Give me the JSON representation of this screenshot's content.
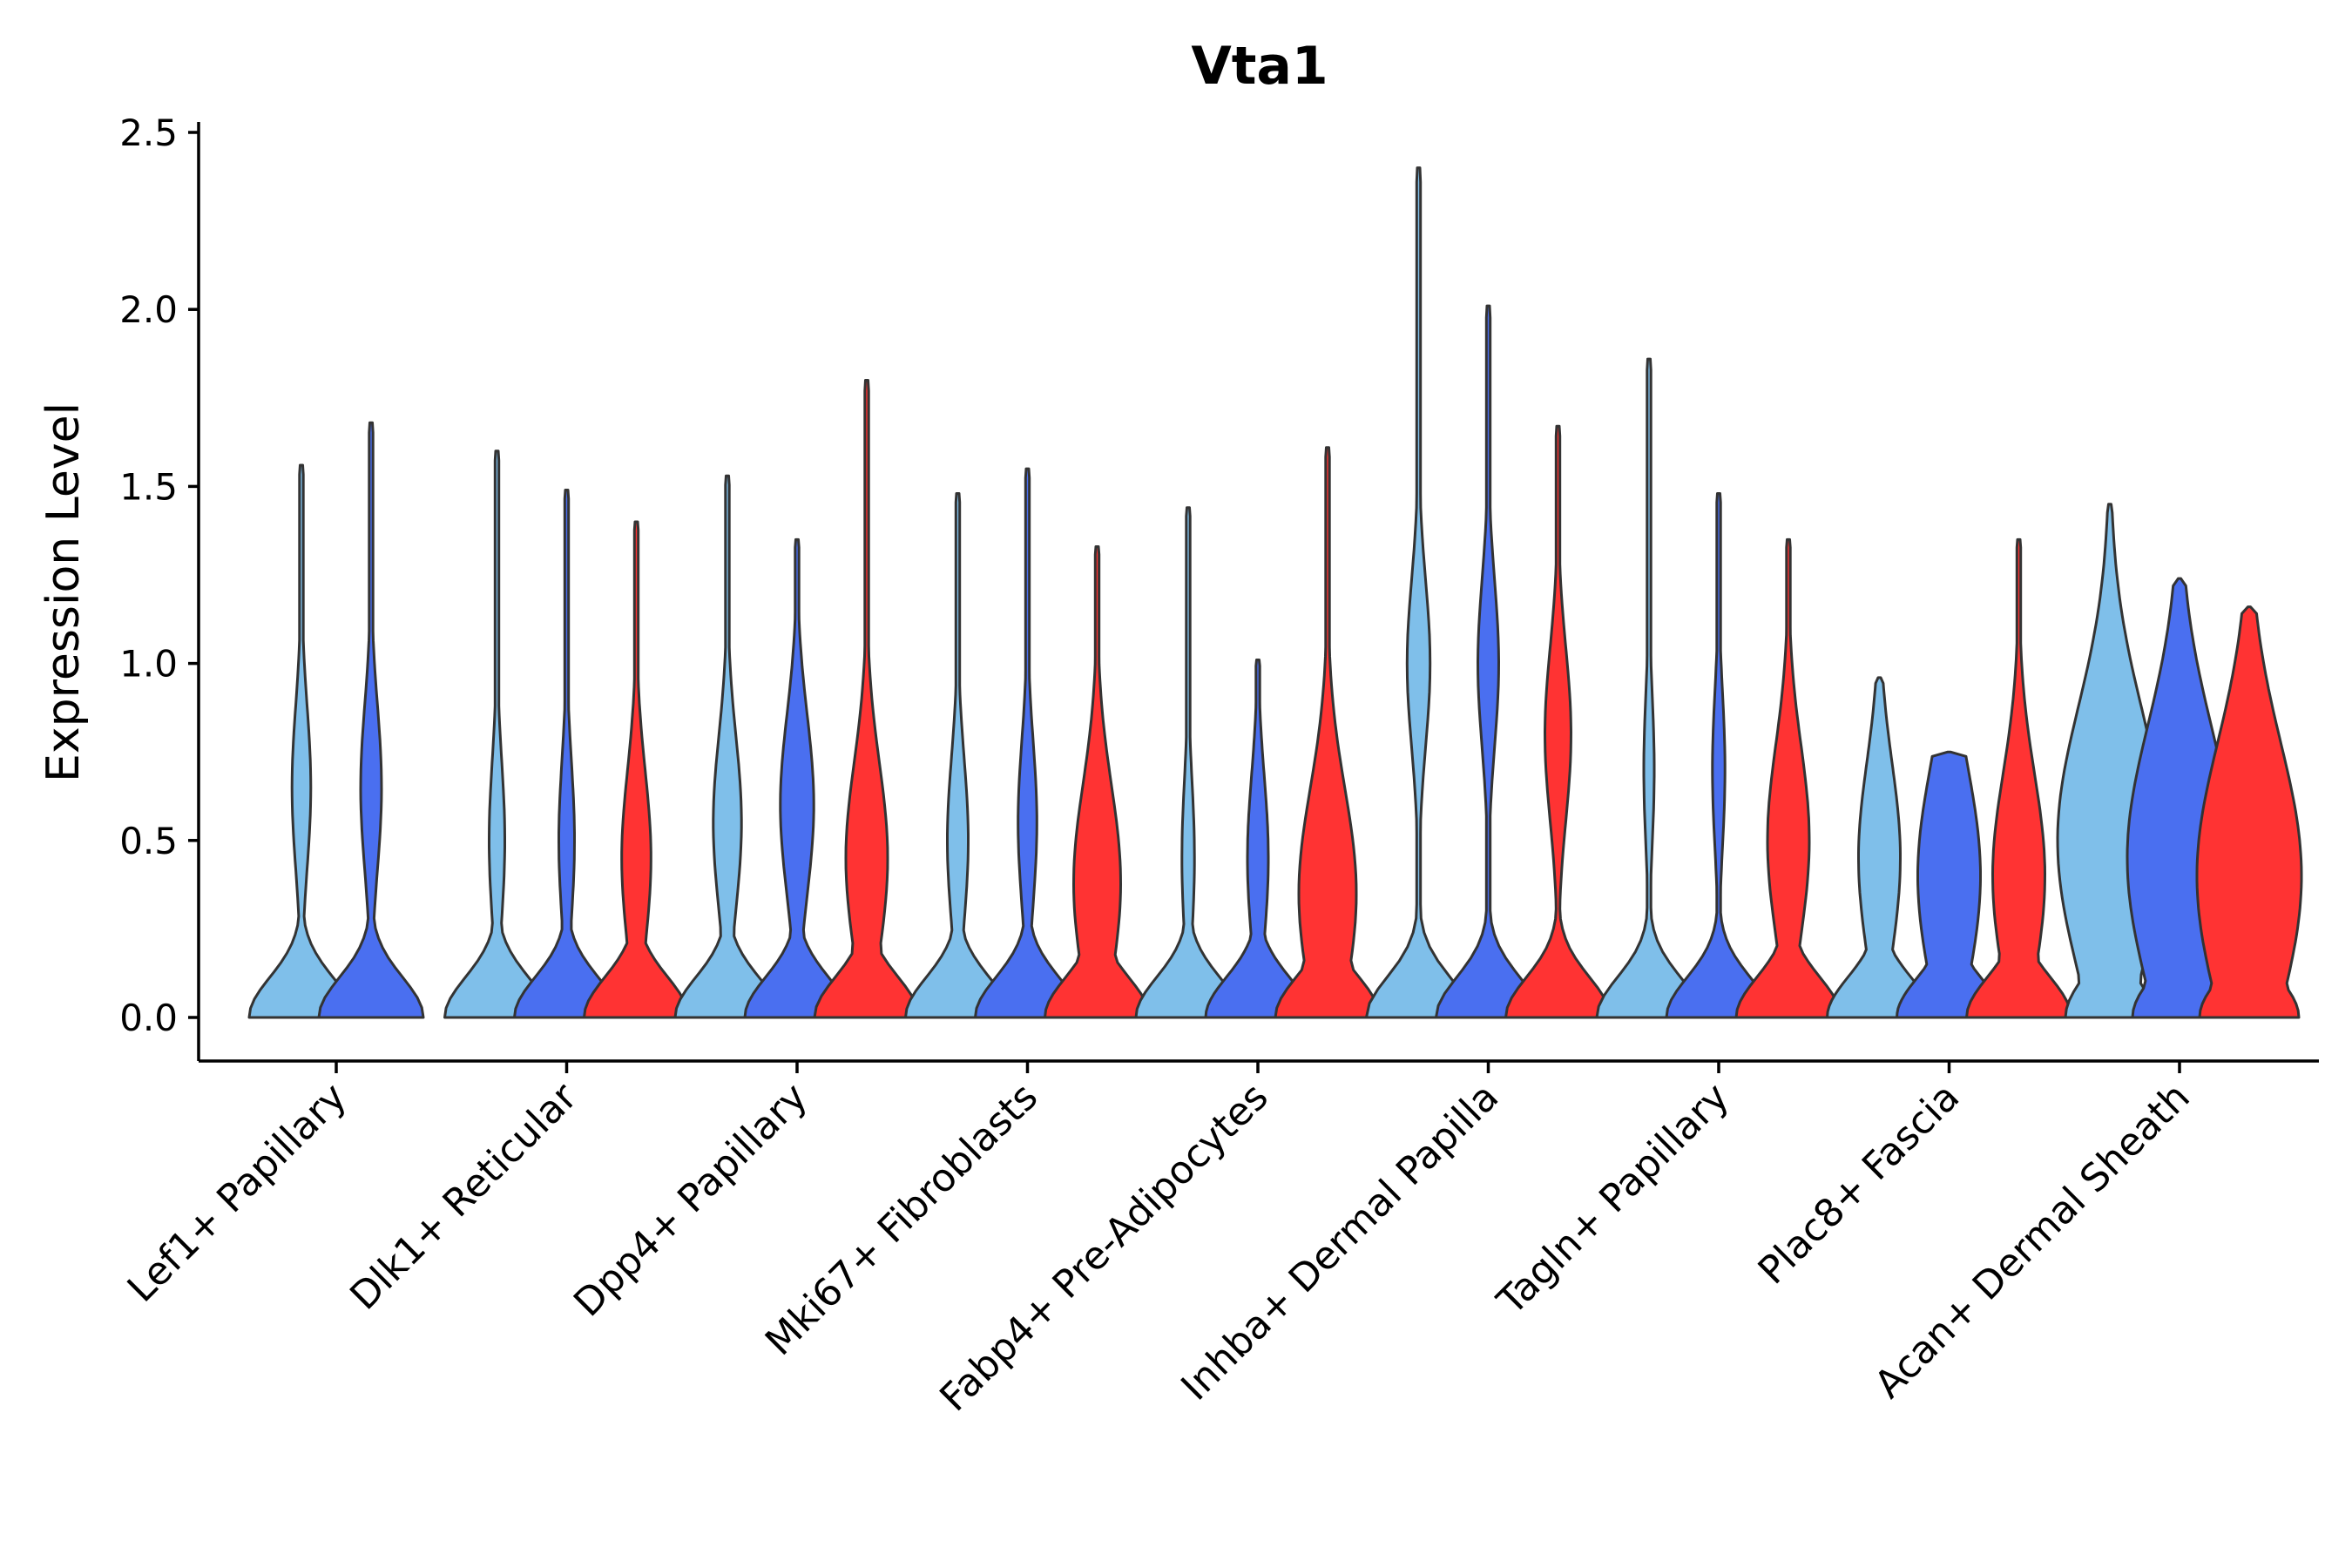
{
  "chart_data": {
    "type": "violin",
    "title": "Vta1",
    "xlabel": "",
    "ylabel": "Expression Level",
    "ylim": [
      -0.12,
      2.52
    ],
    "yticks": [
      "0.0",
      "0.5",
      "1.0",
      "1.5",
      "2.0",
      "2.5"
    ],
    "ytick_values": [
      0,
      0.5,
      1.0,
      1.5,
      2.0,
      2.5
    ],
    "grid": false,
    "legend": "none",
    "conditions": [
      {
        "name": "condition-1",
        "color": "#7fbfea"
      },
      {
        "name": "condition-2",
        "color": "#4a6ff0"
      },
      {
        "name": "condition-3",
        "color": "#ff3333"
      }
    ],
    "categories": [
      "Lef1+ Papillary",
      "Dlk1+ Reticular",
      "Dpp4+ Papillary",
      "Mki67+ Fibroblasts",
      "Fabp4+ Pre-Adipocytes",
      "Inhba+ Dermal Papilla",
      "Tagln+ Papillary",
      "Plac8+ Fascia",
      "Acan+ Dermal Sheath"
    ],
    "violins": [
      {
        "category": "Lef1+ Papillary",
        "condition": 0,
        "max": 1.56,
        "mode": 0.65,
        "upper_width": 0.18,
        "base_width": 1.0
      },
      {
        "category": "Lef1+ Papillary",
        "condition": 1,
        "max": 1.68,
        "mode": 0.65,
        "upper_width": 0.2,
        "base_width": 1.0
      },
      {
        "category": "Dlk1+ Reticular",
        "condition": 0,
        "max": 1.6,
        "mode": 0.5,
        "upper_width": 0.15,
        "base_width": 1.0
      },
      {
        "category": "Dlk1+ Reticular",
        "condition": 1,
        "max": 1.49,
        "mode": 0.5,
        "upper_width": 0.15,
        "base_width": 1.0
      },
      {
        "category": "Dlk1+ Reticular",
        "condition": 2,
        "max": 1.4,
        "mode": 0.45,
        "upper_width": 0.28,
        "base_width": 1.0
      },
      {
        "category": "Dpp4+ Papillary",
        "condition": 0,
        "max": 1.53,
        "mode": 0.55,
        "upper_width": 0.27,
        "base_width": 1.0
      },
      {
        "category": "Dpp4+ Papillary",
        "condition": 1,
        "max": 1.35,
        "mode": 0.6,
        "upper_width": 0.32,
        "base_width": 1.0
      },
      {
        "category": "Dpp4+ Papillary",
        "condition": 2,
        "max": 1.8,
        "mode": 0.45,
        "upper_width": 0.4,
        "base_width": 1.0
      },
      {
        "category": "Mki67+ Fibroblasts",
        "condition": 0,
        "max": 1.48,
        "mode": 0.5,
        "upper_width": 0.2,
        "base_width": 1.0
      },
      {
        "category": "Mki67+ Fibroblasts",
        "condition": 1,
        "max": 1.55,
        "mode": 0.55,
        "upper_width": 0.18,
        "base_width": 1.0
      },
      {
        "category": "Mki67+ Fibroblasts",
        "condition": 2,
        "max": 1.33,
        "mode": 0.38,
        "upper_width": 0.45,
        "base_width": 1.0
      },
      {
        "category": "Fabp4+ Pre-Adipocytes",
        "condition": 0,
        "max": 1.44,
        "mode": 0.45,
        "upper_width": 0.12,
        "base_width": 1.0
      },
      {
        "category": "Fabp4+ Pre-Adipocytes",
        "condition": 1,
        "max": 1.01,
        "mode": 0.45,
        "upper_width": 0.2,
        "base_width": 1.0
      },
      {
        "category": "Fabp4+ Pre-Adipocytes",
        "condition": 2,
        "max": 1.61,
        "mode": 0.35,
        "upper_width": 0.55,
        "base_width": 1.0
      },
      {
        "category": "Inhba+ Dermal Papilla",
        "condition": 0,
        "max": 2.4,
        "mode": 1.0,
        "upper_width": 0.22,
        "base_width": 1.0
      },
      {
        "category": "Inhba+ Dermal Papilla",
        "condition": 1,
        "max": 2.01,
        "mode": 1.0,
        "upper_width": 0.2,
        "base_width": 1.0
      },
      {
        "category": "Inhba+ Dermal Papilla",
        "condition": 2,
        "max": 1.67,
        "mode": 0.8,
        "upper_width": 0.25,
        "base_width": 1.0
      },
      {
        "category": "Tagln+ Papillary",
        "condition": 0,
        "max": 1.86,
        "mode": 0.7,
        "upper_width": 0.1,
        "base_width": 1.0
      },
      {
        "category": "Tagln+ Papillary",
        "condition": 1,
        "max": 1.48,
        "mode": 0.7,
        "upper_width": 0.12,
        "base_width": 1.0
      },
      {
        "category": "Tagln+ Papillary",
        "condition": 2,
        "max": 1.35,
        "mode": 0.5,
        "upper_width": 0.4,
        "base_width": 1.0
      },
      {
        "category": "Plac8+ Fascia",
        "condition": 0,
        "max": 0.96,
        "mode": 0.45,
        "upper_width": 0.4,
        "base_width": 1.0
      },
      {
        "category": "Plac8+ Fascia",
        "condition": 1,
        "max": 0.75,
        "mode": 0.4,
        "upper_width": 0.6,
        "base_width": 1.0
      },
      {
        "category": "Plac8+ Fascia",
        "condition": 2,
        "max": 1.35,
        "mode": 0.4,
        "upper_width": 0.5,
        "base_width": 1.0
      },
      {
        "category": "Acan+ Dermal Sheath",
        "condition": 0,
        "max": 1.45,
        "mode": 0.5,
        "upper_width": 1.0,
        "base_width": 0.85
      },
      {
        "category": "Acan+ Dermal Sheath",
        "condition": 1,
        "max": 1.24,
        "mode": 0.45,
        "upper_width": 1.0,
        "base_width": 0.9
      },
      {
        "category": "Acan+ Dermal Sheath",
        "condition": 2,
        "max": 1.16,
        "mode": 0.4,
        "upper_width": 1.0,
        "base_width": 0.95
      }
    ]
  }
}
